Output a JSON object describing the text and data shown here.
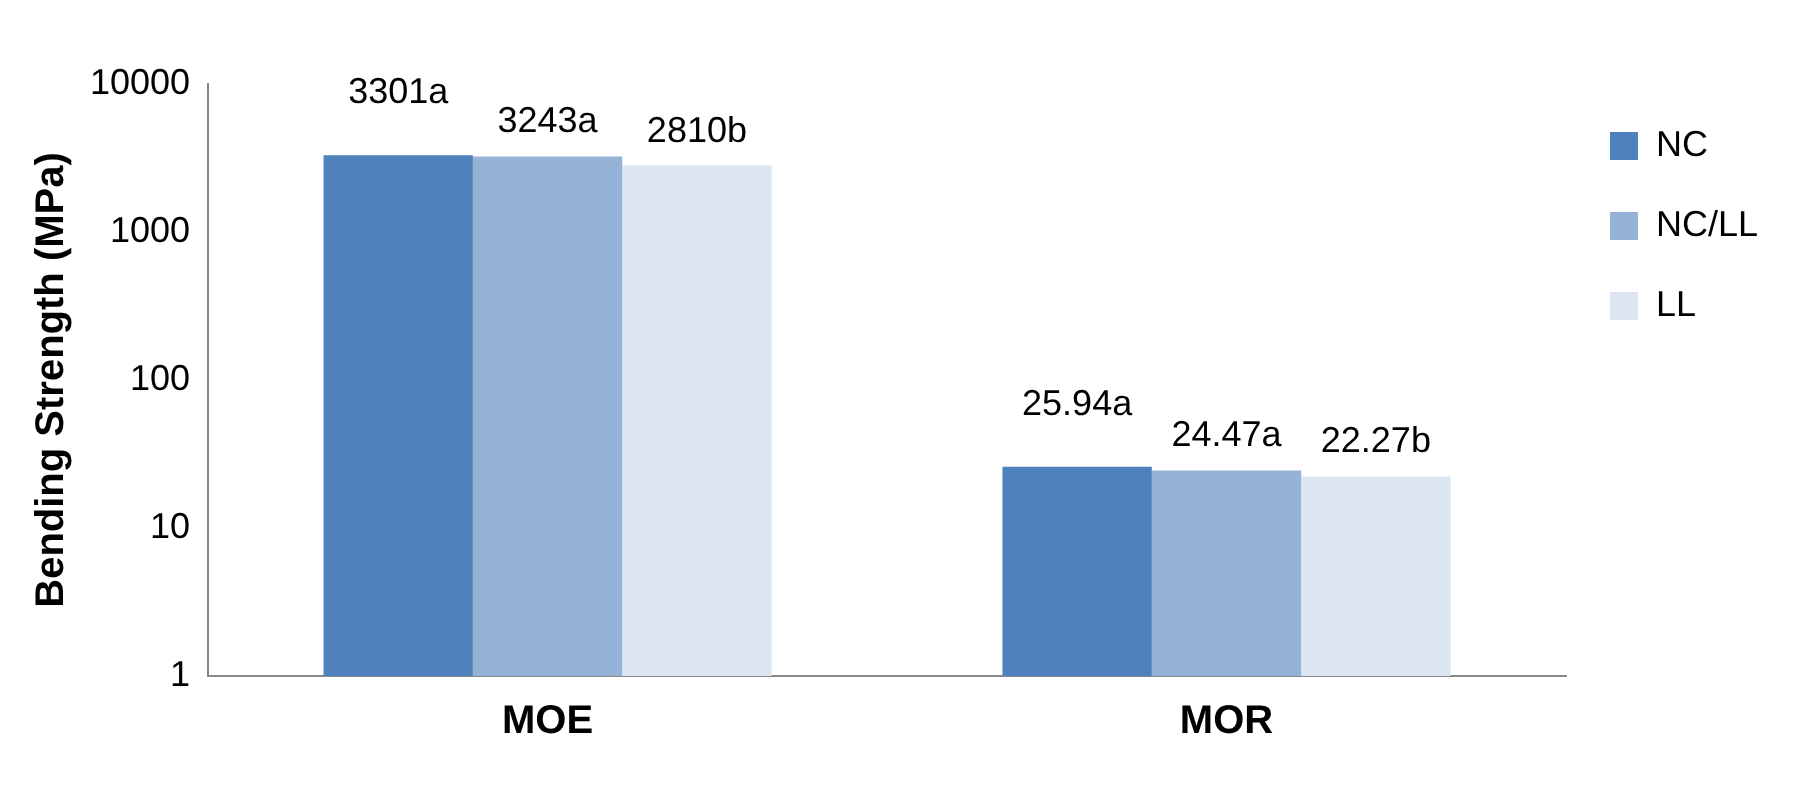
{
  "chart_data": {
    "type": "bar",
    "ylabel": "Bending Strength (MPa)",
    "categories": [
      "MOE",
      "MOR"
    ],
    "series": [
      {
        "name": "NC",
        "color": "#4f81bd",
        "values": [
          3301,
          25.94
        ],
        "value_labels": [
          "3301a",
          "25.94a"
        ]
      },
      {
        "name": "NC/LL",
        "color": "#95b3d7",
        "values": [
          3243,
          24.47
        ],
        "value_labels": [
          "3243a",
          "24.47a"
        ]
      },
      {
        "name": "LL",
        "color": "#dce6f2",
        "values": [
          2810,
          22.27
        ],
        "value_labels": [
          "2810b",
          "22.27b"
        ]
      }
    ],
    "log": "y",
    "ylim": [
      1,
      10000
    ],
    "yticks": [
      1,
      10,
      100,
      1000,
      10000
    ],
    "grid": false,
    "legend": "right"
  }
}
